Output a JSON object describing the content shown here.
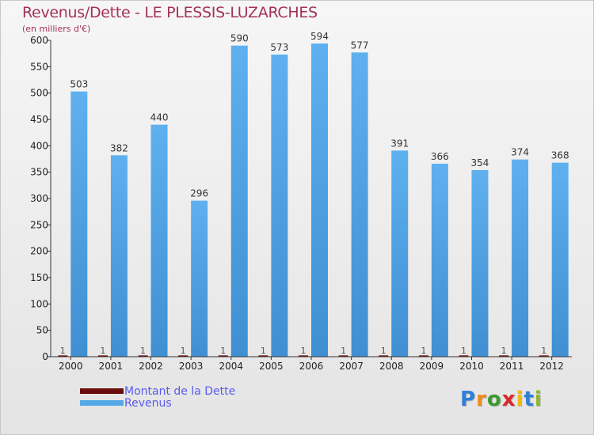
{
  "header": {
    "title": "Revenus/Dette - LE PLESSIS-LUZARCHES",
    "subtitle": "(en milliers d'€)"
  },
  "chart_data": {
    "type": "bar",
    "categories": [
      "2000",
      "2001",
      "2002",
      "2003",
      "2004",
      "2005",
      "2006",
      "2007",
      "2008",
      "2009",
      "2010",
      "2011",
      "2012"
    ],
    "series": [
      {
        "name": "Montant de la Dette",
        "values": [
          1,
          1,
          1,
          1,
          1,
          1,
          1,
          1,
          1,
          1,
          1,
          1,
          1
        ],
        "color": "#7a0a0a"
      },
      {
        "name": "Revenus",
        "values": [
          503,
          382,
          440,
          296,
          590,
          573,
          594,
          577,
          391,
          366,
          354,
          374,
          368
        ],
        "color": "#55a8e6"
      }
    ],
    "ylim": [
      0,
      600
    ],
    "yticks": [
      0,
      50,
      100,
      150,
      200,
      250,
      300,
      350,
      400,
      450,
      500,
      550,
      600
    ],
    "grid": false,
    "legend": "bottom-left"
  },
  "legend": {
    "items": [
      {
        "label": "Montant de la Dette",
        "color": "#6b0d0d"
      },
      {
        "label": "Revenus",
        "color": "#55a8e6"
      }
    ]
  },
  "logo": {
    "letters": [
      "P",
      "r",
      "o",
      "x",
      "i",
      "t",
      "i"
    ],
    "colors": [
      "#2f7fd8",
      "#f08a1c",
      "#3a9a2a",
      "#d8282a",
      "#f0b81c",
      "#2f7fd8",
      "#8bb82a"
    ]
  }
}
